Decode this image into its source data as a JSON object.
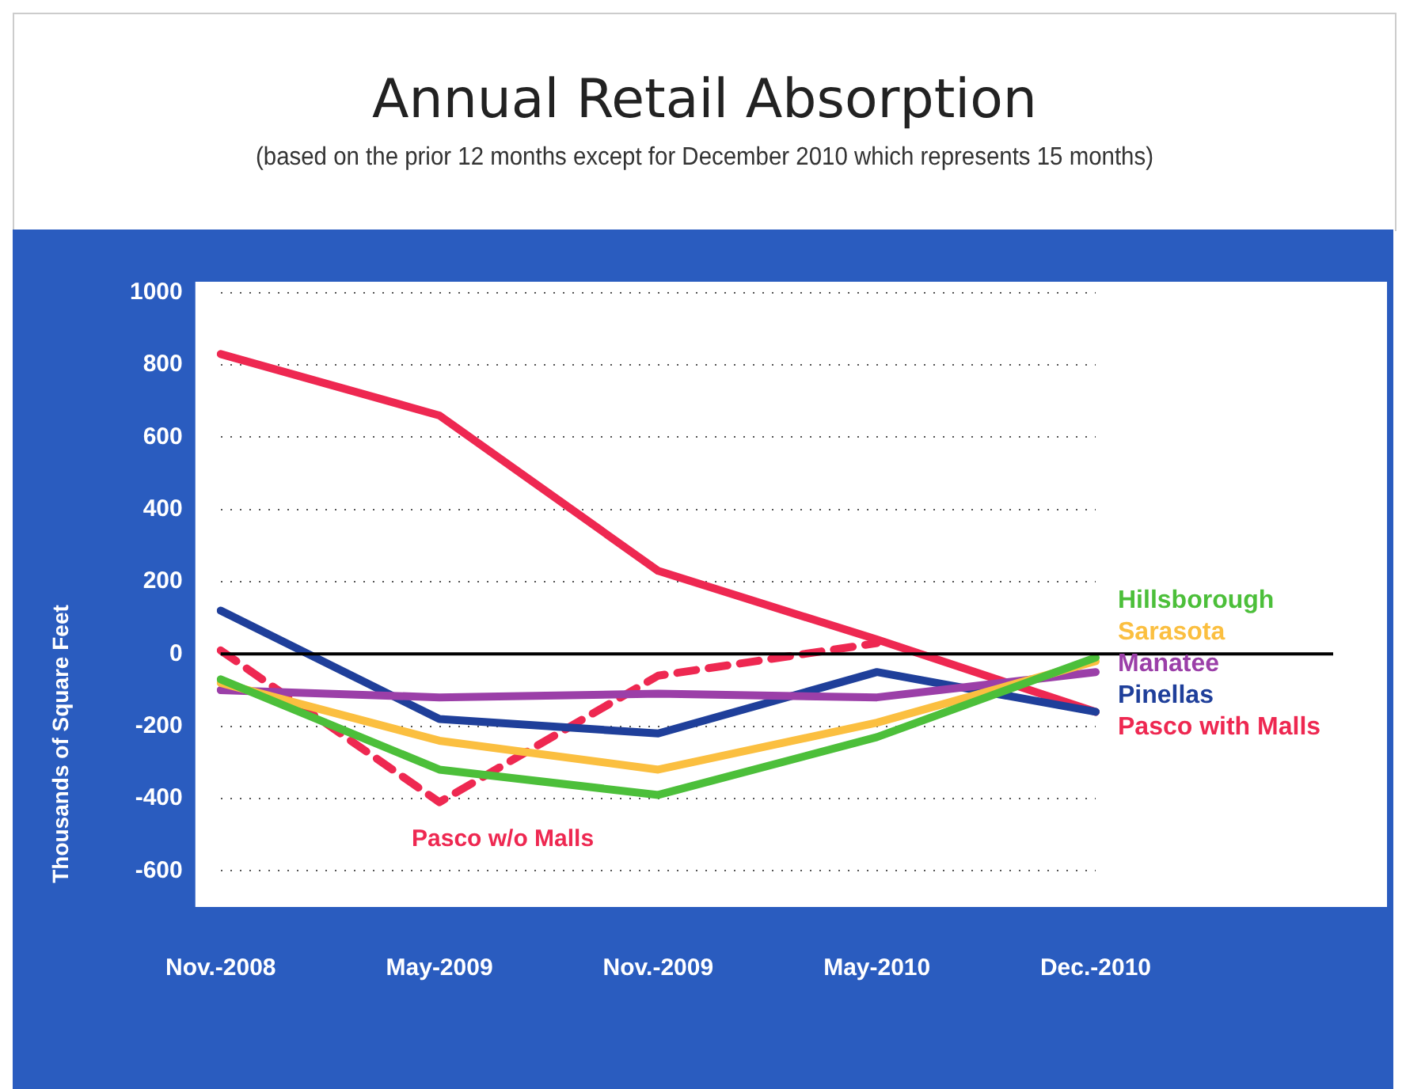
{
  "chart_data": {
    "type": "line",
    "title": "Annual Retail Absorption",
    "subtitle": "(based on the prior 12 months except for December 2010 which represents 15 months)",
    "ylabel": "Thousands of Square Feet",
    "categories": [
      "Nov.-2008",
      "May-2009",
      "Nov.-2009",
      "May-2010",
      "Dec.-2010"
    ],
    "ylim": [
      -700,
      1030
    ],
    "yticks": [
      -600,
      -400,
      -200,
      0,
      200,
      400,
      600,
      800,
      1000
    ],
    "grid": "y",
    "legend": false,
    "marker": "none",
    "ref_lines": [
      {
        "axis": "y",
        "value": 0,
        "color": "#000000"
      }
    ],
    "series": [
      {
        "name": "Hillsborough",
        "color": "#4cbf3a",
        "values": [
          -70,
          -320,
          -390,
          -230,
          -10
        ]
      },
      {
        "name": "Sarasota",
        "color": "#fbbf40",
        "values": [
          -80,
          -240,
          -320,
          -190,
          -20
        ]
      },
      {
        "name": "Manatee",
        "color": "#9b3fa8",
        "values": [
          -100,
          -120,
          -110,
          -120,
          -50
        ]
      },
      {
        "name": "Pinellas",
        "color": "#1f3f9a",
        "values": [
          120,
          -180,
          -220,
          -50,
          -160
        ]
      },
      {
        "name": "Pasco with Malls",
        "color": "#ee2851",
        "values": [
          830,
          660,
          230,
          40,
          -160
        ]
      },
      {
        "name": "Pasco w/o Malls",
        "color": "#ee2851",
        "line_style": "dashed",
        "values": [
          10,
          -410,
          -60,
          30,
          null
        ]
      }
    ]
  }
}
